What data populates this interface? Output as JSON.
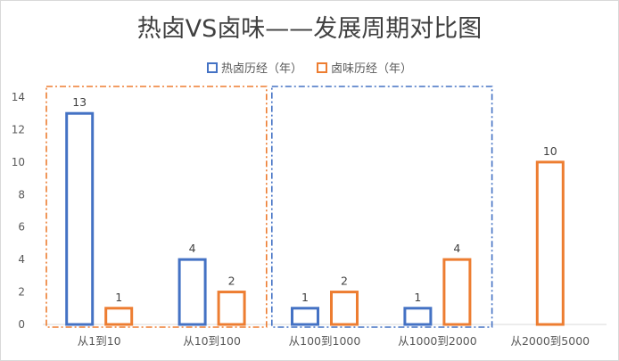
{
  "chart_data": {
    "type": "bar",
    "title": "热卤VS卤味——发展周期对比图",
    "xlabel": "",
    "ylabel": "",
    "ylim": [
      0,
      14
    ],
    "y_ticks": [
      0,
      2,
      4,
      6,
      8,
      10,
      12,
      14
    ],
    "grid": false,
    "legend_position": "top-center",
    "categories": [
      "从1到10",
      "从10到100",
      "从100到1000",
      "从1000到2000",
      "从2000到5000"
    ],
    "series": [
      {
        "name": "热卤历经（年）",
        "color": "#4472c4",
        "values": [
          13,
          4,
          1,
          1,
          null
        ]
      },
      {
        "name": "卤味历经（年）",
        "color": "#ed7d31",
        "values": [
          1,
          2,
          2,
          4,
          10
        ]
      }
    ],
    "annotations": [
      {
        "type": "dash-dot box",
        "color": "#ed7d31",
        "categories": [
          "从1到10",
          "从10到100"
        ]
      },
      {
        "type": "dash-dot box",
        "color": "#4472c4",
        "categories": [
          "从100到1000",
          "从1000到2000"
        ]
      }
    ]
  }
}
